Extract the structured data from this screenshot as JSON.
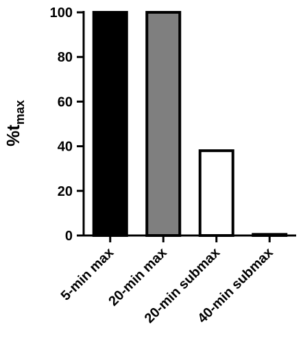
{
  "chart_data": {
    "type": "bar",
    "y_label": "%t",
    "y_label_sub": "max",
    "categories": [
      "5-min max",
      "20-min max",
      "20-min submax",
      "40-min submax"
    ],
    "values": [
      100,
      100,
      38,
      0.5
    ],
    "colors": [
      "#000000",
      "#7f7f7f",
      "#ffffff",
      "#ffffff"
    ],
    "ylim": [
      0,
      100
    ],
    "yticks": [
      0,
      20,
      40,
      60,
      80,
      100
    ]
  }
}
